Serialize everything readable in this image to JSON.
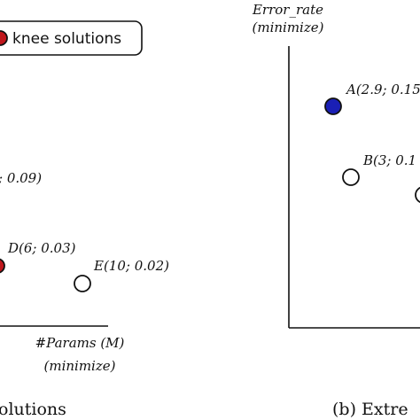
{
  "left_panel": {
    "legend": {
      "label": "knee solutions"
    },
    "points": [
      {
        "label": "; 0.09)"
      },
      {
        "label": "D(6; 0.03)"
      },
      {
        "label": "E(10; 0.02)"
      }
    ],
    "x_axis": {
      "label": "#Params (M)",
      "note": "(minimize)"
    },
    "caption": "olutions"
  },
  "right_panel": {
    "y_axis": {
      "label": "Error_rate",
      "note": "(minimize)"
    },
    "points": [
      {
        "label": "A(2.9; 0.15"
      },
      {
        "label": "B(3; 0.1"
      }
    ],
    "caption": "(b) Extre"
  }
}
